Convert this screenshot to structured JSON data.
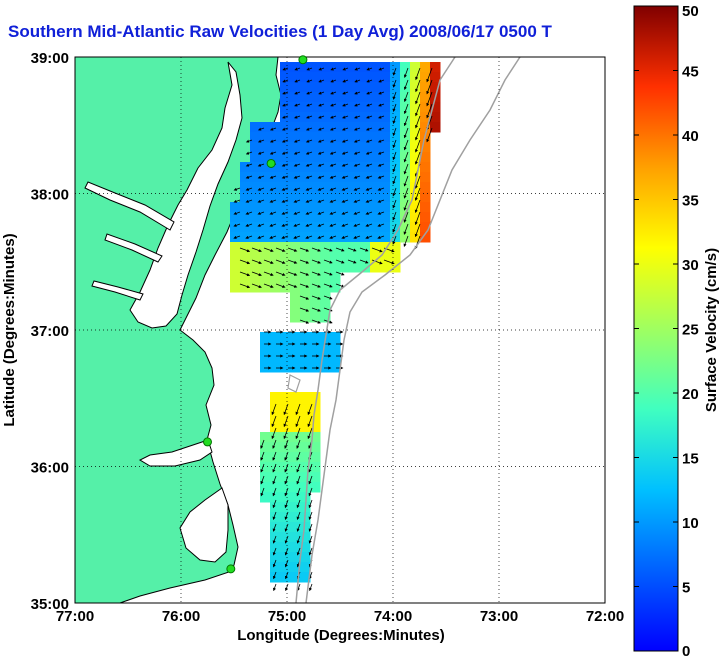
{
  "title": "Southern Mid-Atlantic Raw Velocities (1 Day Avg) 2008/06/17 0500 T",
  "map": {
    "xlabel": "Longitude (Degrees:Minutes)",
    "ylabel": "Latitude (Degrees:Minutes)",
    "x_ticks": [
      "77:00",
      "76:00",
      "75:00",
      "74:00",
      "73:00",
      "72:00"
    ],
    "y_ticks": [
      "39:00",
      "38:00",
      "37:00",
      "36:00",
      "35:00"
    ],
    "lon_range": [
      -77,
      -72
    ],
    "lat_range": [
      35,
      39
    ],
    "grid": "dotted",
    "colors": {
      "land": "#55f0a8",
      "ocean": "#ffffff",
      "coastline": "#000000",
      "isobath": "#a0a0a0",
      "station": "#22dd22",
      "vector": "#000000"
    }
  },
  "colorbar": {
    "label": "Surface Velocity (cm/s)",
    "ticks": [
      "0",
      "5",
      "10",
      "15",
      "20",
      "25",
      "30",
      "35",
      "40",
      "45",
      "50"
    ],
    "range": [
      0,
      50
    ],
    "colormap": "jet"
  },
  "stations": [
    {
      "lon": -74.85,
      "lat": 38.98
    },
    {
      "lon": -75.15,
      "lat": 38.22
    },
    {
      "lon": -75.75,
      "lat": 36.18
    },
    {
      "lon": -75.53,
      "lat": 35.25
    }
  ]
}
